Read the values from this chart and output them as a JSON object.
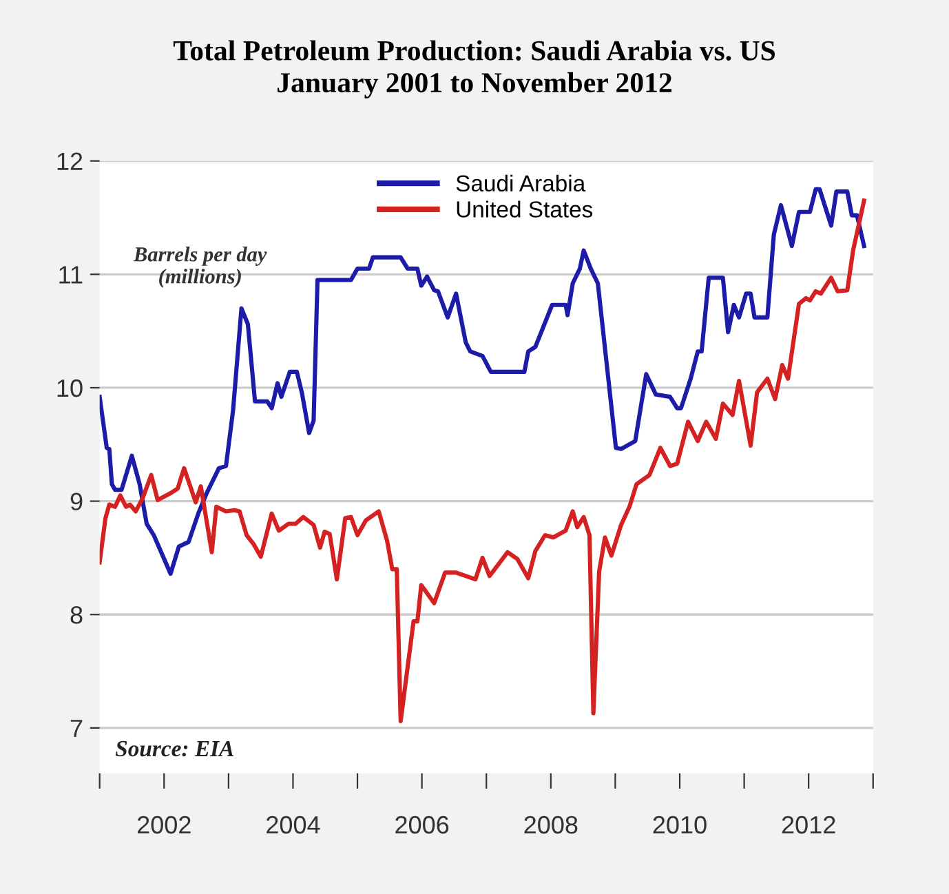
{
  "chart_data": {
    "type": "line",
    "title": "Total Petroleum Production: Saudi Arabia vs. US\nJanuary 2001 to November 2012",
    "ylabel": "Barrels per day\n(millions)",
    "annotations": [
      "Source: EIA"
    ],
    "xlim": [
      2001,
      2013
    ],
    "ylim": [
      6.6,
      12
    ],
    "xticks": [
      {
        "value": 2001,
        "label": null
      },
      2002,
      {
        "value": 2003,
        "label": null
      },
      2004,
      {
        "value": 2005,
        "label": null
      },
      2006,
      {
        "value": 2007,
        "label": null
      },
      2008,
      {
        "value": 2009,
        "label": null
      },
      2010,
      {
        "value": 2011,
        "label": null
      },
      2012,
      {
        "value": 2013,
        "label": null
      }
    ],
    "yticks": [
      7,
      8,
      9,
      10,
      11,
      12
    ],
    "grid": "y",
    "legend": "top",
    "line_style": "solid",
    "series": [
      {
        "name": "Saudi Arabia",
        "color": "#1c1ca8",
        "x": [
          2001.0,
          2001.11,
          2001.15,
          2001.19,
          2001.24,
          2001.34,
          2001.5,
          2001.62,
          2001.73,
          2001.84,
          2002.1,
          2002.23,
          2002.38,
          2002.53,
          2002.66,
          2002.85,
          2002.96,
          2003.07,
          2003.2,
          2003.3,
          2003.41,
          2003.6,
          2003.67,
          2003.76,
          2003.82,
          2003.95,
          2004.06,
          2004.14,
          2004.25,
          2004.32,
          2004.38,
          2004.9,
          2005.0,
          2005.18,
          2005.24,
          2005.67,
          2005.78,
          2005.93,
          2005.99,
          2006.08,
          2006.19,
          2006.25,
          2006.4,
          2006.53,
          2006.68,
          2006.75,
          2006.94,
          2007.07,
          2007.59,
          2007.65,
          2007.76,
          2008.02,
          2008.23,
          2008.26,
          2008.34,
          2008.45,
          2008.51,
          2008.62,
          2008.73,
          2009.01,
          2009.09,
          2009.31,
          2009.48,
          2009.63,
          2009.85,
          2009.96,
          2010.02,
          2010.17,
          2010.28,
          2010.34,
          2010.45,
          2010.67,
          2010.75,
          2010.84,
          2010.92,
          2011.03,
          2011.1,
          2011.16,
          2011.36,
          2011.46,
          2011.57,
          2011.74,
          2011.85,
          2012.02,
          2012.11,
          2012.17,
          2012.35,
          2012.43,
          2012.6,
          2012.67,
          2012.75,
          2012.86
        ],
        "values": [
          9.92,
          9.47,
          9.46,
          9.15,
          9.1,
          9.1,
          9.4,
          9.15,
          8.8,
          8.7,
          8.36,
          8.6,
          8.64,
          8.89,
          9.07,
          9.29,
          9.31,
          9.8,
          10.7,
          10.56,
          9.88,
          9.88,
          9.82,
          10.04,
          9.92,
          10.14,
          10.14,
          9.95,
          9.6,
          9.71,
          10.95,
          10.95,
          11.05,
          11.05,
          11.15,
          11.15,
          11.05,
          11.05,
          10.9,
          10.98,
          10.86,
          10.85,
          10.62,
          10.83,
          10.4,
          10.32,
          10.28,
          10.14,
          10.14,
          10.32,
          10.36,
          10.73,
          10.73,
          10.64,
          10.92,
          11.05,
          11.21,
          11.05,
          10.92,
          9.47,
          9.46,
          9.53,
          10.12,
          9.94,
          9.92,
          9.82,
          9.82,
          10.08,
          10.32,
          10.32,
          10.97,
          10.97,
          10.49,
          10.73,
          10.62,
          10.83,
          10.83,
          10.62,
          10.62,
          11.35,
          11.61,
          11.25,
          11.55,
          11.55,
          11.75,
          11.75,
          11.43,
          11.73,
          11.73,
          11.52,
          11.52,
          11.25
        ]
      },
      {
        "name": "United States",
        "color": "#d42222",
        "x": [
          2001.0,
          2001.09,
          2001.15,
          2001.24,
          2001.32,
          2001.41,
          2001.47,
          2001.56,
          2001.67,
          2001.8,
          2001.9,
          2002.1,
          2002.21,
          2002.31,
          2002.49,
          2002.57,
          2002.74,
          2002.81,
          2002.96,
          2003.09,
          2003.17,
          2003.28,
          2003.39,
          2003.5,
          2003.67,
          2003.78,
          2003.93,
          2004.04,
          2004.16,
          2004.32,
          2004.42,
          2004.49,
          2004.57,
          2004.68,
          2004.81,
          2004.9,
          2005.0,
          2005.13,
          2005.33,
          2005.46,
          2005.54,
          2005.61,
          2005.67,
          2005.87,
          2005.93,
          2005.99,
          2006.19,
          2006.36,
          2006.53,
          2006.83,
          2006.94,
          2007.05,
          2007.33,
          2007.48,
          2007.65,
          2007.76,
          2007.91,
          2008.04,
          2008.23,
          2008.34,
          2008.41,
          2008.51,
          2008.6,
          2008.66,
          2008.75,
          2008.84,
          2008.94,
          2009.09,
          2009.22,
          2009.33,
          2009.53,
          2009.7,
          2009.85,
          2009.96,
          2010.13,
          2010.28,
          2010.41,
          2010.56,
          2010.67,
          2010.82,
          2010.92,
          2011.1,
          2011.2,
          2011.36,
          2011.48,
          2011.59,
          2011.68,
          2011.85,
          2011.96,
          2012.02,
          2012.11,
          2012.19,
          2012.35,
          2012.45,
          2012.6,
          2012.69,
          2012.86
        ],
        "values": [
          8.46,
          8.85,
          8.97,
          8.95,
          9.05,
          8.95,
          8.97,
          8.91,
          9.03,
          9.23,
          9.01,
          9.07,
          9.11,
          9.29,
          8.99,
          9.13,
          8.55,
          8.95,
          8.91,
          8.92,
          8.91,
          8.7,
          8.62,
          8.51,
          8.89,
          8.74,
          8.8,
          8.8,
          8.86,
          8.79,
          8.59,
          8.73,
          8.71,
          8.31,
          8.85,
          8.86,
          8.7,
          8.83,
          8.91,
          8.65,
          8.4,
          8.4,
          7.06,
          7.94,
          7.94,
          8.26,
          8.1,
          8.37,
          8.37,
          8.31,
          8.5,
          8.34,
          8.55,
          8.49,
          8.32,
          8.56,
          8.7,
          8.68,
          8.74,
          8.91,
          8.77,
          8.86,
          8.7,
          7.13,
          8.38,
          8.68,
          8.52,
          8.79,
          8.95,
          9.15,
          9.23,
          9.47,
          9.31,
          9.33,
          9.7,
          9.53,
          9.7,
          9.55,
          9.86,
          9.76,
          10.06,
          9.49,
          9.96,
          10.08,
          9.9,
          10.2,
          10.08,
          10.74,
          10.79,
          10.77,
          10.85,
          10.83,
          10.97,
          10.85,
          10.86,
          11.21,
          11.65
        ]
      }
    ]
  }
}
